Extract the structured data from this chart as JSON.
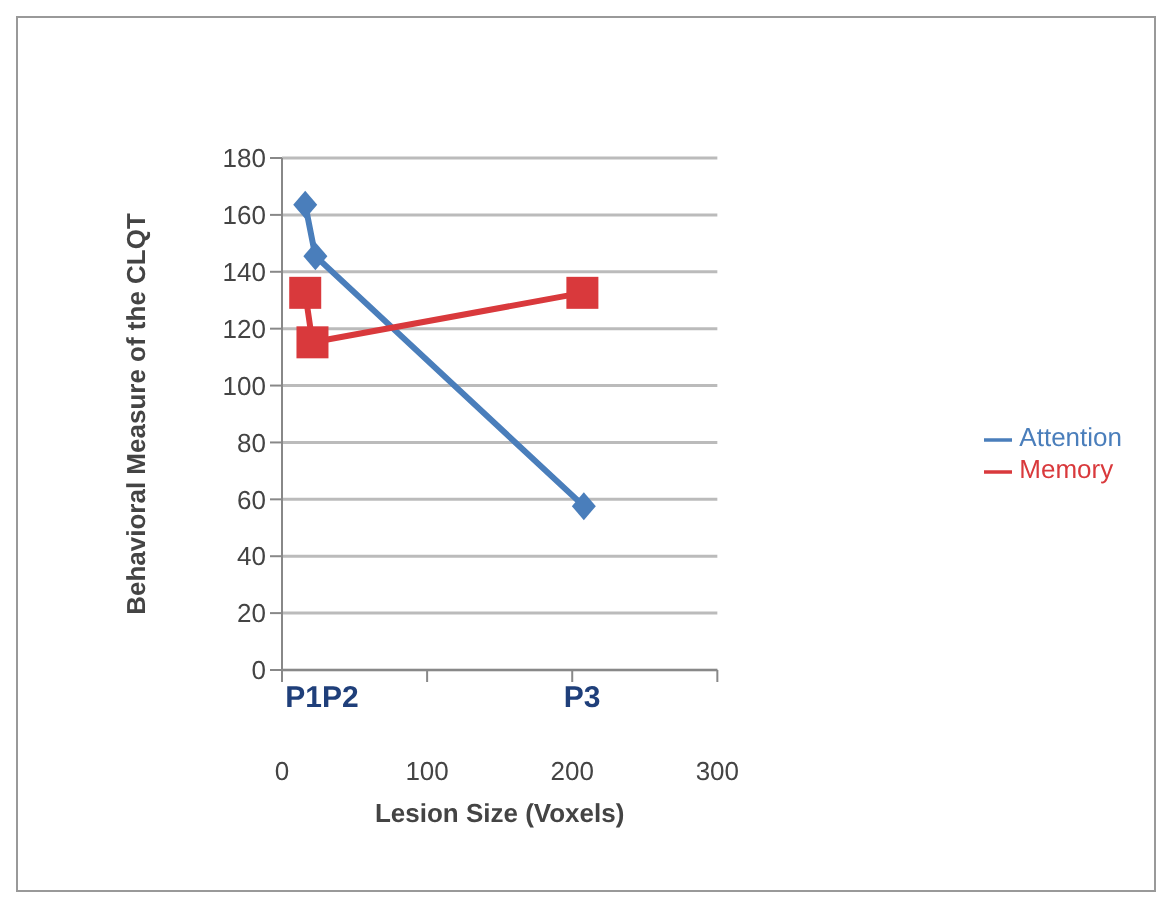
{
  "chart_data": {
    "type": "line",
    "xlabel": "Lesion Size  (Voxels)",
    "ylabel": "Behavioral Measure of the CLQT",
    "series": [
      {
        "name": "Attention",
        "color": "#4a7ebb",
        "marker": "diamond",
        "x": [
          16,
          23,
          208
        ],
        "values": [
          163.6,
          145.5,
          57.6
        ]
      },
      {
        "name": "Memory",
        "color": "#d9393c",
        "marker": "square",
        "x": [
          16,
          21,
          207
        ],
        "values": [
          132.6,
          115.2,
          132.6
        ]
      }
    ],
    "xlim": [
      0,
      300
    ],
    "xticks": [
      0,
      100,
      200,
      300
    ],
    "ylim": [
      0,
      180
    ],
    "yticks": [
      0,
      20,
      40,
      60,
      80,
      100,
      120,
      140,
      160,
      180
    ],
    "grid": "y",
    "legend": "right",
    "line_style": "solid",
    "annotations": [
      "P1P2",
      "P3"
    ]
  }
}
